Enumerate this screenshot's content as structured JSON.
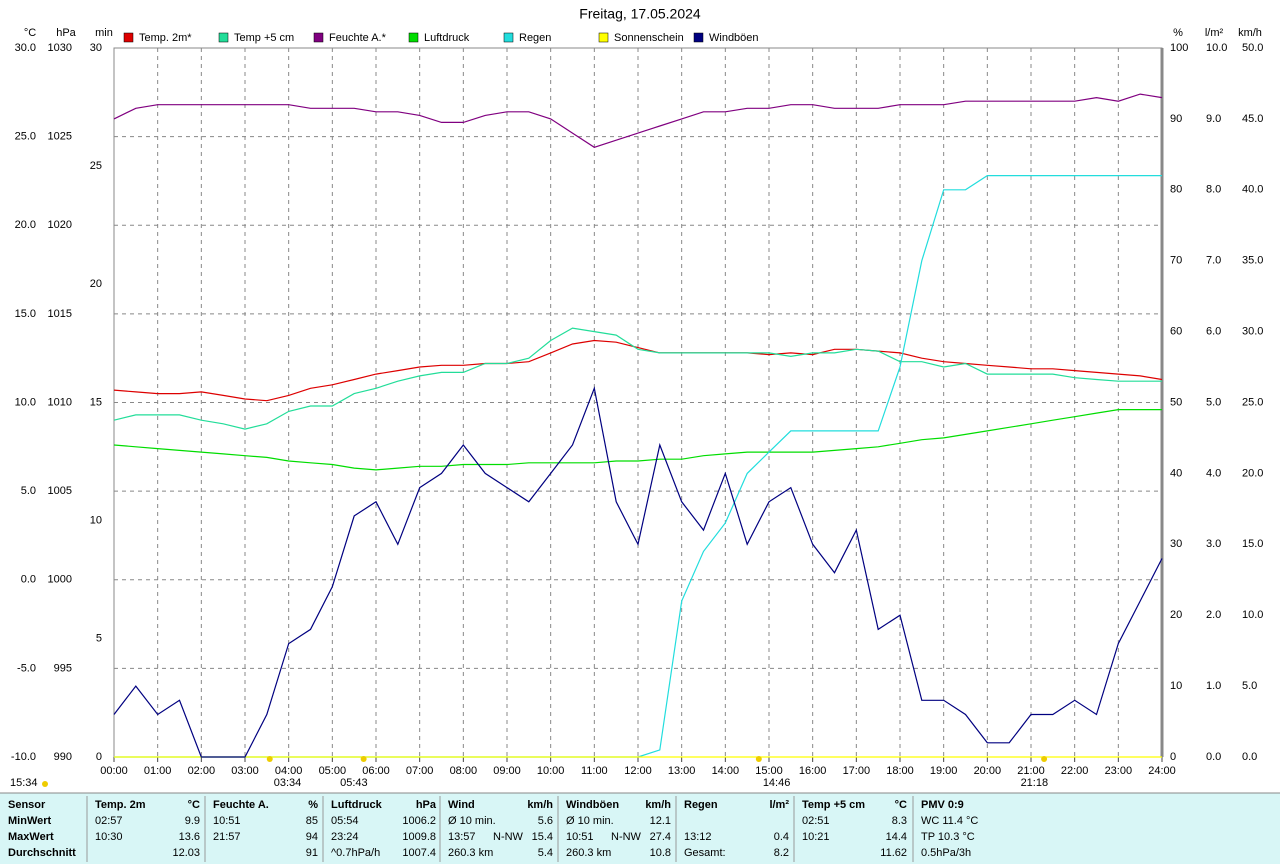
{
  "chart_data": {
    "type": "line",
    "title": "Freitag, 17.05.2024",
    "grid": true,
    "x": [
      0,
      0.5,
      1,
      1.5,
      2,
      2.5,
      3,
      3.5,
      4,
      4.5,
      5,
      5.5,
      6,
      6.5,
      7,
      7.5,
      8,
      8.5,
      9,
      9.5,
      10,
      10.5,
      11,
      11.5,
      12,
      12.5,
      13,
      13.5,
      14,
      14.5,
      15,
      15.5,
      16,
      16.5,
      17,
      17.5,
      18,
      18.5,
      19,
      19.5,
      20,
      20.5,
      21,
      21.5,
      22,
      22.5,
      23,
      23.5,
      24
    ],
    "xlim": [
      0,
      24
    ],
    "xticks": [
      {
        "value": 0,
        "label": "00:00"
      },
      {
        "value": 1,
        "label": "01:00"
      },
      {
        "value": 2,
        "label": "02:00"
      },
      {
        "value": 3,
        "label": "03:00"
      },
      {
        "value": 4,
        "label": "04:00"
      },
      {
        "value": 5,
        "label": "05:00"
      },
      {
        "value": 6,
        "label": "06:00"
      },
      {
        "value": 7,
        "label": "07:00"
      },
      {
        "value": 8,
        "label": "08:00"
      },
      {
        "value": 9,
        "label": "09:00"
      },
      {
        "value": 10,
        "label": "10:00"
      },
      {
        "value": 11,
        "label": "11:00"
      },
      {
        "value": 12,
        "label": "12:00"
      },
      {
        "value": 13,
        "label": "13:00"
      },
      {
        "value": 14,
        "label": "14:00"
      },
      {
        "value": 15,
        "label": "15:00"
      },
      {
        "value": 16,
        "label": "16:00"
      },
      {
        "value": 17,
        "label": "17:00"
      },
      {
        "value": 18,
        "label": "18:00"
      },
      {
        "value": 19,
        "label": "19:00"
      },
      {
        "value": 20,
        "label": "20:00"
      },
      {
        "value": 21,
        "label": "21:00"
      },
      {
        "value": 22,
        "label": "22:00"
      },
      {
        "value": 23,
        "label": "23:00"
      },
      {
        "value": 24,
        "label": "24:00"
      }
    ],
    "axes": [
      {
        "label": "°C",
        "color": "#cc0000",
        "side": "left",
        "lim": [
          -10,
          30
        ],
        "ticks": [
          {
            "value": -10,
            "label": "-10.0"
          },
          {
            "value": -5,
            "label": "-5.0"
          },
          {
            "value": 0,
            "label": "0.0"
          },
          {
            "value": 5,
            "label": "5.0"
          },
          {
            "value": 10,
            "label": "10.0"
          },
          {
            "value": 15,
            "label": "15.0"
          },
          {
            "value": 20,
            "label": "20.0"
          },
          {
            "value": 25,
            "label": "25.0"
          },
          {
            "value": 30,
            "label": "30.0"
          }
        ]
      },
      {
        "label": "hPa",
        "color": "#00aa00",
        "side": "left",
        "lim": [
          990,
          1030
        ],
        "ticks": [
          990,
          995,
          1000,
          1005,
          1010,
          1015,
          1020,
          1025,
          1030
        ]
      },
      {
        "label": "min",
        "color": "#dddd00",
        "side": "left",
        "lim": [
          0,
          30
        ],
        "ticks": [
          0,
          5,
          10,
          15,
          20,
          25,
          30
        ]
      },
      {
        "label": "%",
        "color": "#800080",
        "side": "right",
        "lim": [
          0,
          100
        ],
        "ticks": [
          0,
          10,
          20,
          30,
          40,
          50,
          60,
          70,
          80,
          90,
          100
        ]
      },
      {
        "label": "l/m²",
        "color": "#00cccc",
        "side": "right",
        "lim": [
          0,
          10
        ],
        "ticks": [
          {
            "value": 0,
            "label": "0.0"
          },
          {
            "value": 1,
            "label": "1.0"
          },
          {
            "value": 2,
            "label": "2.0"
          },
          {
            "value": 3,
            "label": "3.0"
          },
          {
            "value": 4,
            "label": "4.0"
          },
          {
            "value": 5,
            "label": "5.0"
          },
          {
            "value": 6,
            "label": "6.0"
          },
          {
            "value": 7,
            "label": "7.0"
          },
          {
            "value": 8,
            "label": "8.0"
          },
          {
            "value": 9,
            "label": "9.0"
          },
          {
            "value": 10,
            "label": "10.0"
          }
        ]
      },
      {
        "label": "km/h",
        "color": "#000080",
        "side": "right",
        "lim": [
          0,
          50
        ],
        "ticks": [
          {
            "value": 0,
            "label": "0.0"
          },
          {
            "value": 5,
            "label": "5.0"
          },
          {
            "value": 10,
            "label": "10.0"
          },
          {
            "value": 15,
            "label": "15.0"
          },
          {
            "value": 20,
            "label": "20.0"
          },
          {
            "value": 25,
            "label": "25.0"
          },
          {
            "value": 30,
            "label": "30.0"
          },
          {
            "value": 35,
            "label": "35.0"
          },
          {
            "value": 40,
            "label": "40.0"
          },
          {
            "value": 45,
            "label": "45.0"
          },
          {
            "value": 50,
            "label": "50.0"
          }
        ]
      }
    ],
    "series": [
      {
        "name": "Temp. 2m*",
        "color": "#dd0000",
        "axis": 0,
        "values": [
          10.7,
          10.6,
          10.5,
          10.5,
          10.6,
          10.4,
          10.2,
          10.1,
          10.4,
          10.8,
          11.0,
          11.3,
          11.6,
          11.8,
          12.0,
          12.1,
          12.1,
          12.2,
          12.2,
          12.3,
          12.8,
          13.3,
          13.5,
          13.4,
          13.1,
          12.8,
          12.8,
          12.8,
          12.8,
          12.8,
          12.7,
          12.8,
          12.7,
          13.0,
          13.0,
          12.9,
          12.8,
          12.5,
          12.3,
          12.2,
          12.1,
          12.0,
          11.9,
          11.9,
          11.8,
          11.7,
          11.6,
          11.5,
          11.3
        ]
      },
      {
        "name": "Temp +5 cm",
        "color": "#22dd99",
        "axis": 0,
        "values": [
          9.0,
          9.3,
          9.3,
          9.3,
          9.0,
          8.8,
          8.5,
          8.8,
          9.5,
          9.8,
          9.8,
          10.5,
          10.8,
          11.2,
          11.5,
          11.7,
          11.7,
          12.2,
          12.2,
          12.5,
          13.5,
          14.2,
          14.0,
          13.8,
          13.0,
          12.8,
          12.8,
          12.8,
          12.8,
          12.8,
          12.8,
          12.6,
          12.8,
          12.8,
          13.0,
          12.9,
          12.3,
          12.3,
          12.0,
          12.2,
          11.6,
          11.6,
          11.6,
          11.6,
          11.4,
          11.3,
          11.2,
          11.2,
          11.2
        ]
      },
      {
        "name": "Feuchte A.*",
        "color": "#800080",
        "axis": 3,
        "values": [
          90,
          91.5,
          92,
          92,
          92,
          92,
          92,
          92,
          92,
          91.5,
          91.5,
          91.5,
          91,
          91,
          90.5,
          89.5,
          89.5,
          90.5,
          91,
          91,
          90,
          88,
          86,
          87,
          88,
          89,
          90,
          91,
          91,
          91.5,
          91.5,
          92,
          92,
          91.5,
          91.5,
          91.5,
          92,
          92,
          92,
          92.5,
          92.5,
          92.5,
          92.5,
          92.5,
          92.5,
          93,
          92.5,
          93.5,
          93
        ]
      },
      {
        "name": "Luftdruck",
        "color": "#00dd00",
        "axis": 1,
        "values": [
          1007.6,
          1007.5,
          1007.4,
          1007.3,
          1007.2,
          1007.1,
          1007.0,
          1006.9,
          1006.7,
          1006.6,
          1006.5,
          1006.3,
          1006.2,
          1006.3,
          1006.4,
          1006.4,
          1006.5,
          1006.5,
          1006.5,
          1006.6,
          1006.6,
          1006.6,
          1006.6,
          1006.7,
          1006.7,
          1006.8,
          1006.8,
          1007.0,
          1007.1,
          1007.2,
          1007.2,
          1007.2,
          1007.2,
          1007.3,
          1007.4,
          1007.5,
          1007.7,
          1007.9,
          1008.0,
          1008.2,
          1008.4,
          1008.6,
          1008.8,
          1009.0,
          1009.2,
          1009.4,
          1009.6,
          1009.6,
          1009.6
        ]
      },
      {
        "name": "Regen",
        "color": "#22dddd",
        "axis": 4,
        "values": [
          0,
          0,
          0,
          0,
          0,
          0,
          0,
          0,
          0,
          0,
          0,
          0,
          0,
          0,
          0,
          0,
          0,
          0,
          0,
          0,
          0,
          0,
          0,
          0,
          0,
          0.1,
          2.2,
          2.9,
          3.3,
          4.0,
          4.3,
          4.6,
          4.6,
          4.6,
          4.6,
          4.6,
          5.5,
          7.0,
          8.0,
          8.0,
          8.2,
          8.2,
          8.2,
          8.2,
          8.2,
          8.2,
          8.2,
          8.2,
          8.2
        ]
      },
      {
        "name": "Sonnenschein",
        "color": "#ffff00",
        "axis": 2,
        "values": [
          0,
          0,
          0,
          0,
          0,
          0,
          0,
          0,
          0,
          0,
          0,
          0,
          0,
          0,
          0,
          0,
          0,
          0,
          0,
          0,
          0,
          0,
          0,
          0,
          0,
          0,
          0,
          0,
          0,
          0,
          0,
          0,
          0,
          0,
          0,
          0,
          0,
          0,
          0,
          0,
          0,
          0,
          0,
          0,
          0,
          0,
          0,
          0,
          0
        ]
      },
      {
        "name": "Windböen",
        "color": "#000080",
        "axis": 5,
        "values": [
          3,
          5,
          3,
          4,
          0,
          0,
          0,
          3,
          8,
          9,
          12,
          17,
          18,
          15,
          19,
          20,
          22,
          20,
          19,
          18,
          20,
          22,
          26,
          18,
          15,
          22,
          18,
          16,
          20,
          15,
          18,
          19,
          15,
          13,
          16,
          9,
          10,
          4,
          4,
          3,
          1,
          1,
          3,
          3,
          4,
          3,
          8,
          11,
          14
        ]
      }
    ],
    "annotations": [
      {
        "x": 3.567,
        "label": "03:34"
      },
      {
        "x": 5.717,
        "label": "05:43"
      },
      {
        "x": 14.767,
        "label": "14:46"
      },
      {
        "x": 21.3,
        "label": "21:18"
      }
    ],
    "corner_note": "15:34"
  },
  "stats": {
    "groups": [
      {
        "title": "Sensor",
        "rows": [
          [
            "MinWert"
          ],
          [
            "MaxWert"
          ],
          [
            "Durchschnitt"
          ]
        ]
      },
      {
        "title": "Temp. 2m",
        "unit": "°C",
        "rows": [
          [
            "02:57",
            null,
            "9.9"
          ],
          [
            "10:30",
            null,
            "13.6"
          ],
          [
            null,
            null,
            "12.03"
          ]
        ]
      },
      {
        "title": "Feuchte A.",
        "unit": "%",
        "rows": [
          [
            "10:51",
            null,
            "85"
          ],
          [
            "21:57",
            null,
            "94"
          ],
          [
            null,
            null,
            "91"
          ]
        ]
      },
      {
        "title": "Luftdruck",
        "unit": "hPa",
        "rows": [
          [
            "05:54",
            null,
            "1006.2"
          ],
          [
            "23:24",
            null,
            "1009.8"
          ],
          [
            "^0.7hPa/h",
            null,
            "1007.4"
          ]
        ]
      },
      {
        "title": "Wind",
        "unit": "km/h",
        "rows": [
          [
            "Ø 10 min.",
            null,
            "5.6"
          ],
          [
            "13:57",
            "N-NW",
            "15.4"
          ],
          [
            "260.3 km",
            null,
            "5.4"
          ]
        ]
      },
      {
        "title": "Windböen",
        "unit": "km/h",
        "rows": [
          [
            "Ø 10 min.",
            null,
            "12.1"
          ],
          [
            "10:51",
            "N-NW",
            "27.4"
          ],
          [
            "260.3 km",
            null,
            "10.8"
          ]
        ]
      },
      {
        "title": "Regen",
        "unit": "l/m²",
        "rows": [
          [
            null,
            null,
            null
          ],
          [
            "13:12",
            null,
            "0.4"
          ],
          [
            "Gesamt:",
            null,
            "8.2"
          ]
        ]
      },
      {
        "title": "Temp +5 cm",
        "unit": "°C",
        "rows": [
          [
            "02:51",
            null,
            "8.3"
          ],
          [
            "10:21",
            null,
            "14.4"
          ],
          [
            null,
            null,
            "11.62"
          ]
        ]
      },
      {
        "title": "PMV 0:9",
        "rows": [
          [
            "WC 11.4 °C"
          ],
          [
            "TP 10.3 °C"
          ],
          [
            "0.5hPa/3h"
          ]
        ]
      }
    ]
  }
}
